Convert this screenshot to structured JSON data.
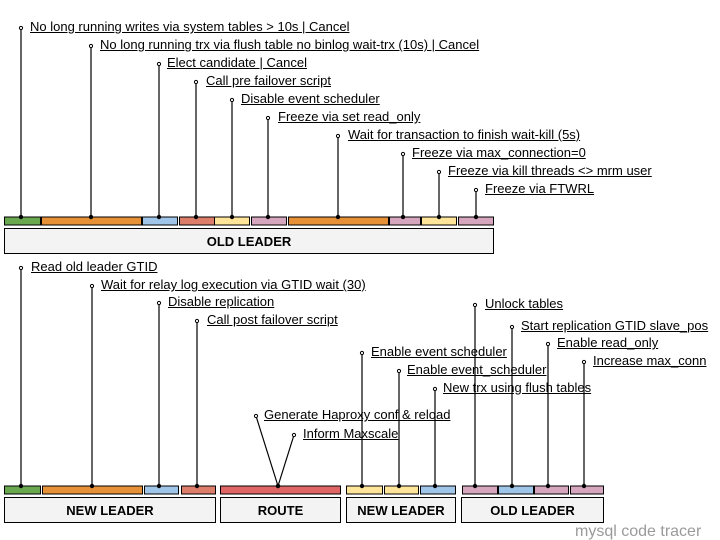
{
  "colors": {
    "green": "#6aa84f",
    "orange": "#e69138",
    "blue": "#9fc5e8",
    "red": "#e06666",
    "salmon": "#dd7e6b",
    "yellow": "#ffe599",
    "pink": "#d5a6bd",
    "box": "#f3f3f3"
  },
  "top": {
    "title": "OLD LEADER",
    "steps": [
      "No long running writes via system tables > 10s | Cancel",
      "No long running trx via flush table no binlog wait-trx (10s) | Cancel",
      "Elect candidate | Cancel",
      "Call pre failover script",
      "Disable event scheduler",
      "Freeze via set read_only",
      "Wait for transaction to finish wait-kill (5s)",
      "Freeze via max_connection=0",
      "Freeze via kill threads <> mrm user",
      "Freeze via FTWRL"
    ],
    "segment_colors": [
      "green",
      "orange",
      "blue",
      "salmon",
      "yellow",
      "pink",
      "orange",
      "pink",
      "yellow",
      "pink"
    ]
  },
  "bottom": {
    "new_leader": {
      "title": "NEW LEADER",
      "steps": [
        "Read old leader GTID",
        "Wait for relay log execution via GTID wait (30)",
        "Disable replication",
        "Call post failover script"
      ],
      "segment_colors": [
        "green",
        "orange",
        "blue",
        "salmon"
      ]
    },
    "route": {
      "title": "ROUTE",
      "steps": [
        "Generate Haproxy conf & reload",
        "Inform Maxscale"
      ],
      "segment_colors": [
        "red"
      ]
    },
    "new_leader_2": {
      "title": "NEW LEADER",
      "steps": [
        "Enable event scheduler",
        "Enable event_scheduler",
        "New trx using flush tables"
      ],
      "segment_colors": [
        "yellow",
        "yellow",
        "blue"
      ]
    },
    "old_leader": {
      "title": "OLD LEADER",
      "steps": [
        "Unlock tables",
        "Start replication GTID slave_pos",
        "Enable read_only",
        "Increase max_conn"
      ],
      "segment_colors": [
        "pink",
        "blue",
        "pink",
        "pink"
      ]
    }
  },
  "watermark": "mysql code tracer"
}
